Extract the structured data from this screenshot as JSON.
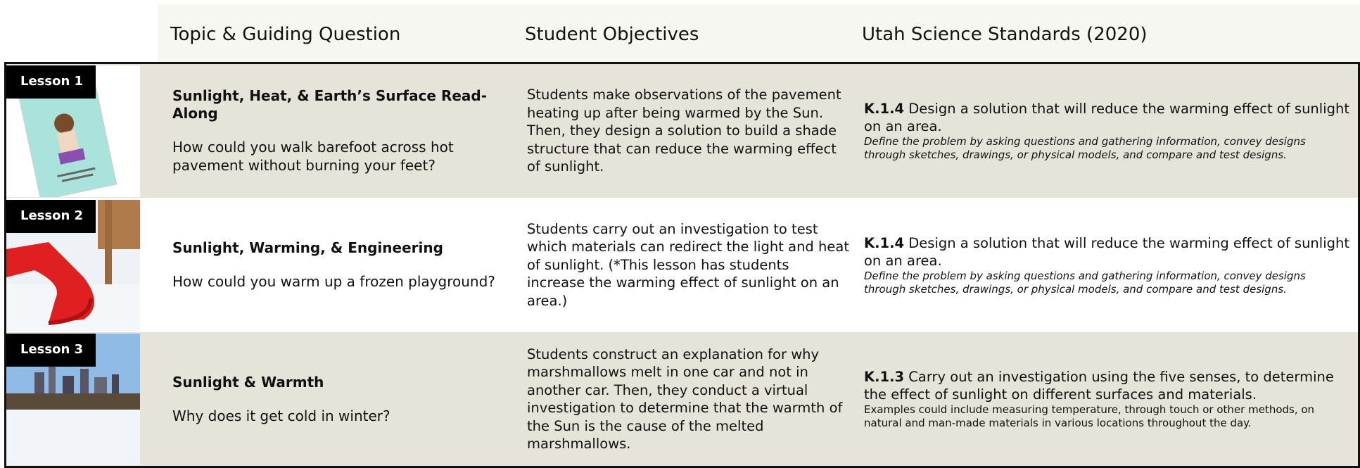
{
  "header": {
    "columns": [
      "Topic & Guiding Question",
      "Student Objectives",
      "Utah Science Standards (2020)"
    ]
  },
  "lessons": [
    {
      "label": "Lesson 1",
      "topic": "Sunlight, Heat, & Earth’s Surface Read-Along",
      "question": "How could you walk barefoot across hot pavement without burning your feet?",
      "objective": "Students make observations of the pavement heating up after being warmed by the Sun. Then, they design a solution to build a shade structure that can reduce the warming effect of sunlight.",
      "standard": {
        "code": "K.1.4",
        "text": "Design a solution that will reduce the warming effect of sunlight on an area.",
        "note": "Define the problem by asking questions and gathering information, convey designs through sketches, drawings, or physical models, and compare and test designs."
      }
    },
    {
      "label": "Lesson 2",
      "topic": "Sunlight, Warming, & Engineering",
      "question": "How could you warm up a frozen playground?",
      "objective": "Students carry out an investigation to test which materials can redirect the light and heat of sunlight. (*This lesson has students increase the warming effect of sunlight on an area.)",
      "standard": {
        "code": "K.1.4",
        "text": "Design a solution that will reduce the warming effect of sunlight on an area.",
        "note": "Define the problem by asking questions and gathering information, convey designs through sketches, drawings, or physical models, and compare and test designs."
      }
    },
    {
      "label": "Lesson 3",
      "topic": "Sunlight & Warmth",
      "question": "Why does it get cold in winter?",
      "objective": "Students construct an explanation for why marshmallows melt in one car and not in another car. Then, they conduct a virtual investigation to determine that the warmth of the Sun is the cause of the melted marshmallows.",
      "standard": {
        "code": "K.1.3",
        "text": "Carry out an investigation using the five senses, to determine the effect of sunlight on different surfaces and materials.",
        "note": "Examples could include measuring temperature, through touch or other methods, on natural and man-made materials in various locations throughout the day."
      }
    }
  ]
}
